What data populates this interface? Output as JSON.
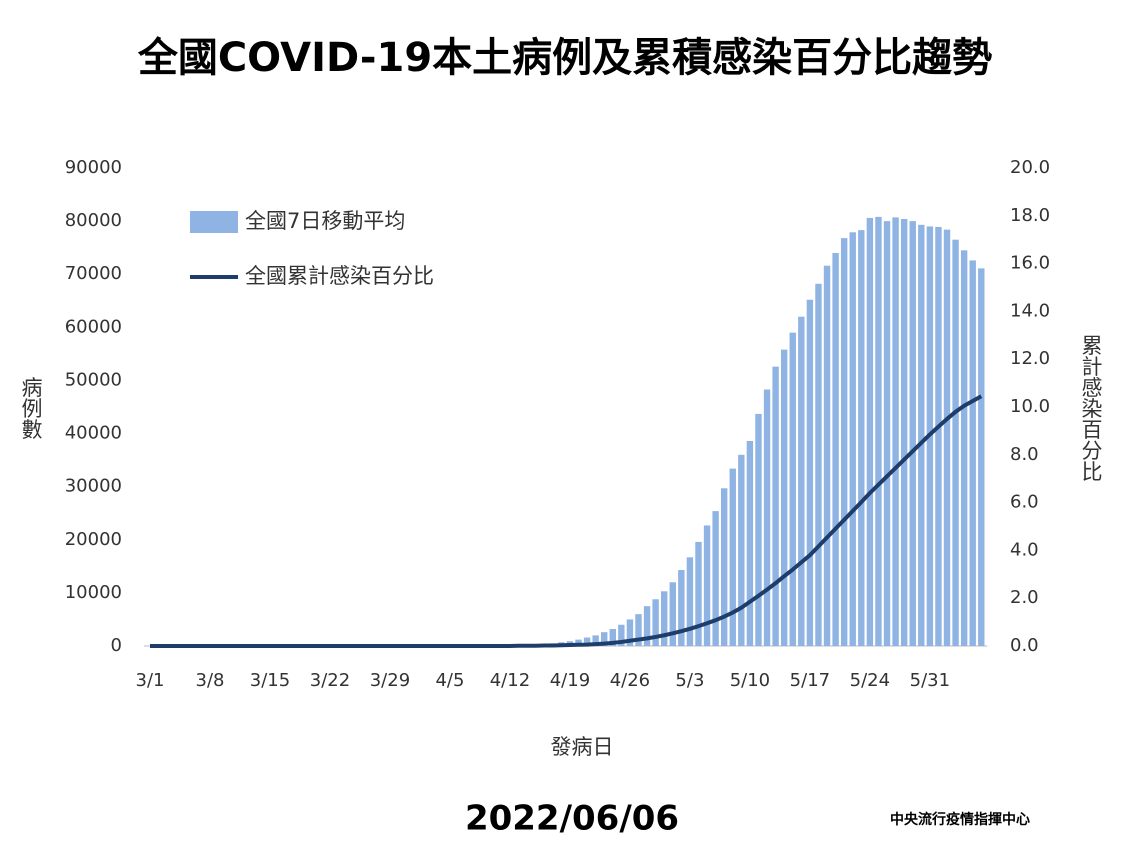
{
  "chart_data": {
    "type": "bar",
    "title": "全國COVID-19本土病例及累積感染百分比趨勢",
    "date": "2022/06/06",
    "source": "中央流行疫情指揮中心",
    "x_label": "發病日",
    "y_label": "病例數",
    "y2_label": "累計感染百分比",
    "categories": [
      "3/1",
      null,
      null,
      null,
      null,
      null,
      null,
      "3/8",
      null,
      null,
      null,
      null,
      null,
      null,
      "3/15",
      null,
      null,
      null,
      null,
      null,
      null,
      "3/22",
      null,
      null,
      null,
      null,
      null,
      null,
      "3/29",
      null,
      null,
      null,
      null,
      null,
      null,
      "4/5",
      null,
      null,
      null,
      null,
      null,
      null,
      "4/12",
      null,
      null,
      null,
      null,
      null,
      null,
      "4/19",
      null,
      null,
      null,
      null,
      null,
      null,
      "4/26",
      null,
      null,
      null,
      null,
      null,
      null,
      "5/3",
      null,
      null,
      null,
      null,
      null,
      null,
      "5/10",
      null,
      null,
      null,
      null,
      null,
      null,
      "5/17",
      null,
      null,
      null,
      null,
      null,
      null,
      "5/24",
      null,
      null,
      null,
      null,
      null,
      null,
      "5/31",
      null,
      null,
      null,
      null,
      null,
      null
    ],
    "ylim": [
      0,
      90000
    ],
    "yticks": [
      0,
      10000,
      20000,
      30000,
      40000,
      50000,
      60000,
      70000,
      80000,
      90000
    ],
    "y2lim": [
      0,
      20
    ],
    "y2ticks": [
      {
        "value": 0,
        "label": "0.0"
      },
      {
        "value": 2,
        "label": "2.0"
      },
      {
        "value": 4,
        "label": "4.0"
      },
      {
        "value": 6,
        "label": "6.0"
      },
      {
        "value": 8,
        "label": "8.0"
      },
      {
        "value": 10,
        "label": "10.0"
      },
      {
        "value": 12,
        "label": "12.0"
      },
      {
        "value": 14,
        "label": "14.0"
      },
      {
        "value": 16,
        "label": "16.0"
      },
      {
        "value": 18,
        "label": "18.0"
      },
      {
        "value": 20,
        "label": "20.0"
      }
    ],
    "legend": "upper left",
    "series": [
      {
        "name": "全國7日移動平均",
        "type": "bar",
        "color": "#8fb4e3",
        "values": [
          5,
          5,
          5,
          5,
          5,
          5,
          5,
          5,
          5,
          5,
          5,
          5,
          5,
          10,
          10,
          10,
          10,
          10,
          10,
          10,
          10,
          10,
          10,
          10,
          15,
          15,
          15,
          15,
          20,
          20,
          20,
          25,
          30,
          35,
          40,
          45,
          50,
          55,
          60,
          70,
          80,
          90,
          100,
          120,
          150,
          200,
          300,
          500,
          700,
          900,
          1200,
          1600,
          2000,
          2600,
          3200,
          4000,
          5000,
          6000,
          7500,
          8800,
          10300,
          12000,
          14300,
          16700,
          19600,
          22700,
          25400,
          29700,
          33400,
          36000,
          38600,
          43700,
          48300,
          52600,
          55800,
          59000,
          62000,
          65200,
          68200,
          71600,
          74000,
          76800,
          77900,
          78300,
          80600,
          80800,
          80000,
          80700,
          80400,
          80000,
          79300,
          79000,
          78900,
          78400,
          76500,
          74500,
          72600,
          71100
        ]
      },
      {
        "name": "全國累計感染百分比",
        "type": "line",
        "axis": "y2",
        "color": "#1f3d6b",
        "values": [
          0,
          0,
          0,
          0,
          0,
          0,
          0,
          0,
          0,
          0,
          0,
          0,
          0,
          0,
          0,
          0,
          0,
          0,
          0,
          0,
          0,
          0,
          0,
          0,
          0,
          0,
          0,
          0,
          0,
          0,
          0,
          0,
          0,
          0,
          0,
          0,
          0,
          0,
          0,
          0,
          0,
          0,
          0,
          0.01,
          0.01,
          0.01,
          0.02,
          0.02,
          0.03,
          0.04,
          0.05,
          0.06,
          0.08,
          0.1,
          0.13,
          0.17,
          0.22,
          0.27,
          0.32,
          0.38,
          0.45,
          0.53,
          0.62,
          0.72,
          0.83,
          0.95,
          1.08,
          1.23,
          1.4,
          1.6,
          1.85,
          2.1,
          2.36,
          2.63,
          2.92,
          3.2,
          3.5,
          3.8,
          4.17,
          4.54,
          4.91,
          5.28,
          5.65,
          6.02,
          6.4,
          6.75,
          7.1,
          7.45,
          7.8,
          8.15,
          8.5,
          8.85,
          9.18,
          9.5,
          9.8,
          10.05,
          10.25,
          10.45
        ]
      }
    ]
  }
}
